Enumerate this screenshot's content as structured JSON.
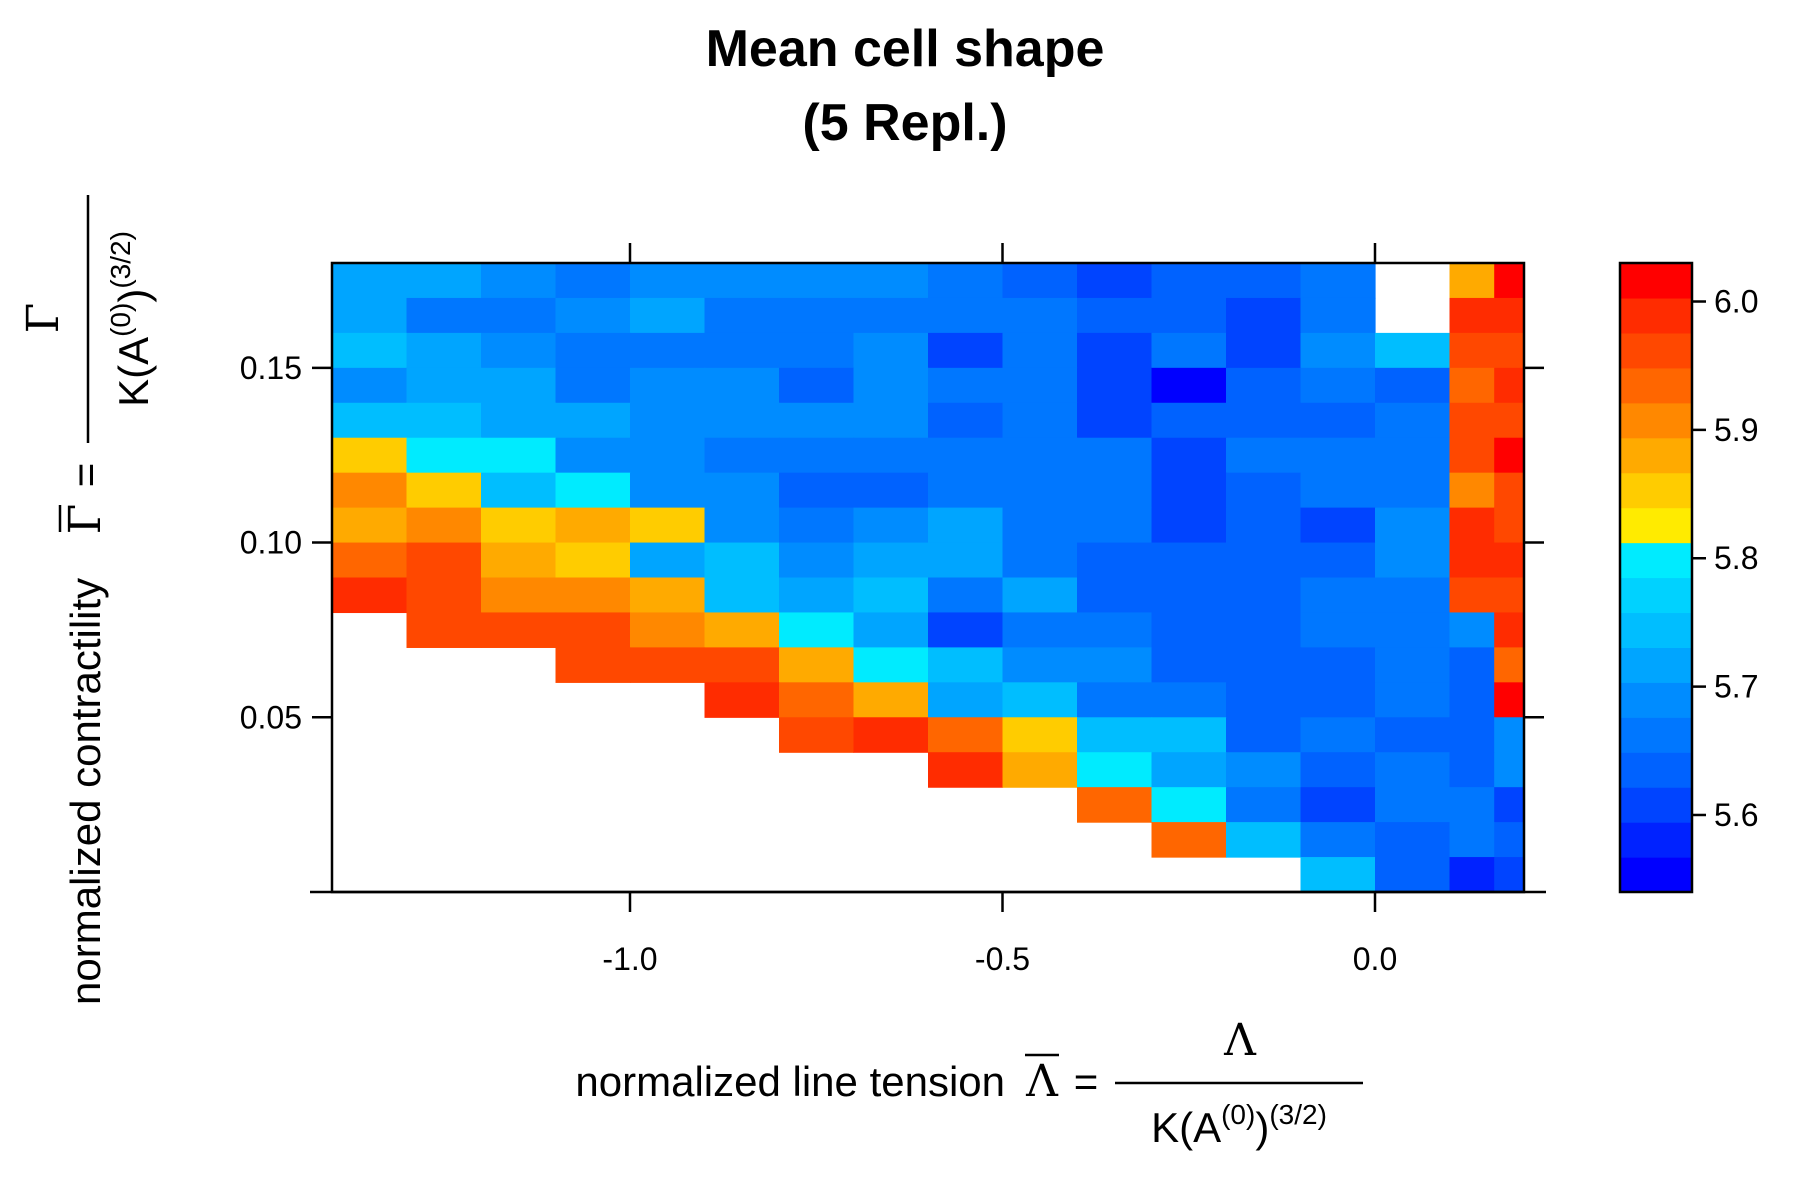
{
  "chart_data": {
    "type": "heatmap",
    "title_line1": "Mean cell shape",
    "title_line2": "(5 Repl.)",
    "xlabel": {
      "text": "normalized line tension",
      "symbol": "Λ",
      "eq": "=",
      "numerator": "Λ",
      "denominator_prefix": "K(A",
      "denominator_sup1": "(0)",
      "denominator_mid": ")",
      "denominator_sup2": "(3/2)"
    },
    "ylabel": {
      "text": "normalized contractility",
      "symbol": "Γ",
      "eq": "=",
      "numerator": "Γ",
      "denominator_prefix": "K(A",
      "denominator_sup1": "(0)",
      "denominator_mid": ")",
      "denominator_sup2": "(3/2)"
    },
    "x_ticks": [
      -1.0,
      -0.5,
      0.0
    ],
    "x_tick_labels": [
      "-1.0",
      "-0.5",
      "0.0"
    ],
    "y_ticks": [
      0.05,
      0.1,
      0.15
    ],
    "y_tick_labels": [
      "0.05",
      "0.10",
      "0.15"
    ],
    "xlim": [
      -1.4,
      0.2
    ],
    "ylim": [
      0.0,
      0.18
    ],
    "x_centers": [
      -1.35,
      -1.25,
      -1.15,
      -1.05,
      -0.95,
      -0.85,
      -0.75,
      -0.65,
      -0.55,
      -0.45,
      -0.35,
      -0.25,
      -0.15,
      -0.05,
      0.05,
      0.15
    ],
    "x_bin_width": 0.1,
    "y_centers": [
      0.005,
      0.015,
      0.025,
      0.035,
      0.045,
      0.055,
      0.065,
      0.075,
      0.085,
      0.095,
      0.105,
      0.115,
      0.125,
      0.135,
      0.145,
      0.155,
      0.165,
      0.175
    ],
    "y_bin_width": 0.01,
    "last_column_split": true,
    "values_top_to_bottom": [
      [
        5.73,
        5.73,
        5.68,
        5.67,
        5.7,
        5.7,
        5.69,
        5.68,
        5.66,
        5.64,
        5.62,
        5.64,
        5.64,
        5.66,
        null,
        5.89,
        6.02
      ],
      [
        5.72,
        5.66,
        5.66,
        5.69,
        5.72,
        5.65,
        5.67,
        5.67,
        5.66,
        5.67,
        5.63,
        5.64,
        5.61,
        5.67,
        null,
        5.99,
        5.99
      ],
      [
        5.75,
        5.72,
        5.69,
        5.67,
        5.67,
        5.67,
        5.67,
        5.69,
        5.6,
        5.67,
        5.61,
        5.66,
        5.61,
        5.69,
        5.74,
        5.97,
        5.97
      ],
      [
        5.68,
        5.72,
        5.72,
        5.66,
        5.69,
        5.69,
        5.63,
        5.7,
        5.67,
        5.67,
        5.62,
        5.54,
        5.63,
        5.66,
        5.64,
        5.93,
        6.0
      ],
      [
        5.75,
        5.75,
        5.72,
        5.72,
        5.7,
        5.7,
        5.7,
        5.7,
        5.64,
        5.67,
        5.62,
        5.64,
        5.64,
        5.64,
        5.67,
        5.97,
        5.97
      ],
      [
        5.84,
        5.81,
        5.81,
        5.69,
        5.69,
        5.67,
        5.67,
        5.67,
        5.67,
        5.67,
        5.67,
        5.6,
        5.66,
        5.66,
        5.66,
        5.97,
        6.03
      ],
      [
        5.91,
        5.84,
        5.75,
        5.81,
        5.69,
        5.69,
        5.64,
        5.64,
        5.67,
        5.67,
        5.67,
        5.6,
        5.64,
        5.67,
        5.67,
        5.91,
        5.97
      ],
      [
        5.89,
        5.92,
        5.84,
        5.87,
        5.84,
        5.69,
        5.67,
        5.7,
        5.72,
        5.67,
        5.67,
        5.6,
        5.64,
        5.6,
        5.69,
        5.99,
        5.97
      ],
      [
        5.94,
        5.97,
        5.87,
        5.84,
        5.72,
        5.75,
        5.69,
        5.72,
        5.72,
        5.67,
        5.63,
        5.63,
        5.63,
        5.63,
        5.69,
        5.99,
        5.99
      ],
      [
        6.0,
        5.97,
        5.92,
        5.92,
        5.87,
        5.75,
        5.72,
        5.75,
        5.67,
        5.72,
        5.63,
        5.63,
        5.63,
        5.66,
        5.66,
        5.97,
        5.97
      ],
      [
        null,
        5.97,
        5.95,
        5.95,
        5.92,
        5.87,
        5.81,
        5.72,
        5.61,
        5.66,
        5.66,
        5.63,
        5.63,
        5.66,
        5.66,
        5.7,
        5.99
      ],
      [
        null,
        null,
        null,
        5.97,
        5.97,
        5.95,
        5.87,
        5.81,
        5.75,
        5.69,
        5.69,
        5.63,
        5.63,
        5.63,
        5.66,
        5.64,
        5.94
      ],
      [
        null,
        null,
        null,
        null,
        null,
        6.0,
        5.94,
        5.87,
        5.72,
        5.75,
        5.66,
        5.66,
        5.63,
        5.63,
        5.66,
        5.64,
        6.03
      ],
      [
        null,
        null,
        null,
        null,
        null,
        null,
        5.97,
        6.0,
        5.94,
        5.84,
        5.75,
        5.75,
        5.63,
        5.66,
        5.64,
        5.64,
        5.69
      ],
      [
        null,
        null,
        null,
        null,
        null,
        null,
        null,
        null,
        6.0,
        5.87,
        5.81,
        5.72,
        5.69,
        5.64,
        5.66,
        5.64,
        5.69
      ],
      [
        null,
        null,
        null,
        null,
        null,
        null,
        null,
        null,
        null,
        null,
        5.94,
        5.81,
        5.67,
        5.6,
        5.66,
        5.67,
        5.6
      ],
      [
        null,
        null,
        null,
        null,
        null,
        null,
        null,
        null,
        null,
        null,
        null,
        5.94,
        5.75,
        5.66,
        5.64,
        5.67,
        5.64
      ],
      [
        null,
        null,
        null,
        null,
        null,
        null,
        null,
        null,
        null,
        null,
        null,
        null,
        null,
        5.75,
        5.64,
        5.57,
        5.62
      ]
    ],
    "colorbar": {
      "min": 5.54,
      "max": 6.03,
      "ticks": [
        5.6,
        5.7,
        5.8,
        5.9,
        6.0
      ],
      "tick_labels": [
        "5.6",
        "5.7",
        "5.8",
        "5.9",
        "6.0"
      ],
      "colors": [
        "#0000FF",
        "#0022FF",
        "#0044FF",
        "#0062FF",
        "#0077FF",
        "#008CFF",
        "#00A5FF",
        "#00BEFF",
        "#00D2FF",
        "#00EBFF",
        "#FFEB00",
        "#FFCC00",
        "#FFAA00",
        "#FF8800",
        "#FF6600",
        "#FF4800",
        "#FF2C00",
        "#FF0000"
      ]
    },
    "grid": false,
    "legend": "right colorbar"
  }
}
